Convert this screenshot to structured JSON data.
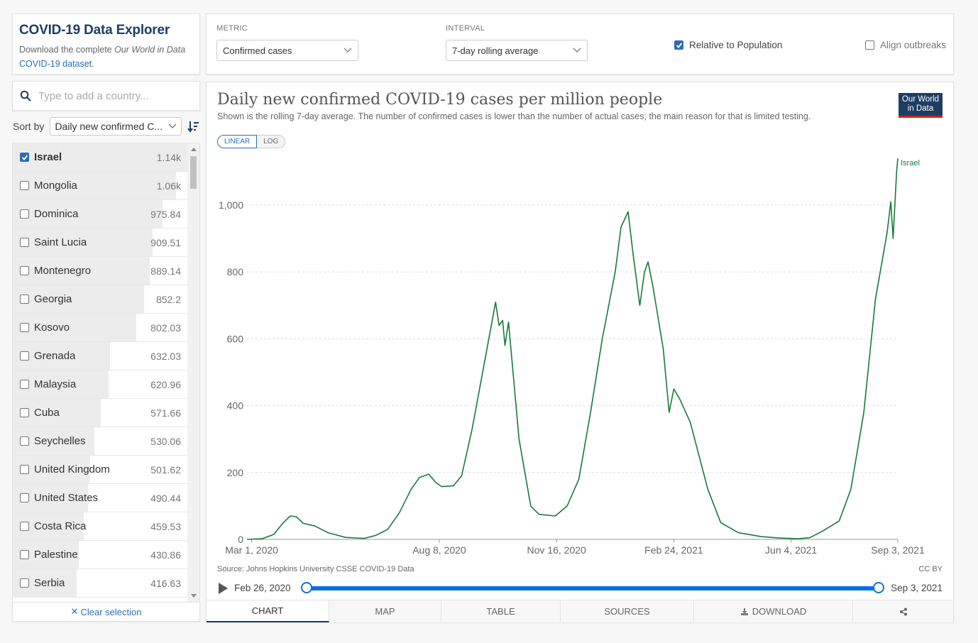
{
  "header": {
    "title": "COVID-19 Data Explorer",
    "download_prefix": "Download the complete ",
    "download_em": "Our World in Data",
    "download_link": "COVID-19 dataset",
    "download_suffix": "."
  },
  "search": {
    "placeholder": "Type to add a country..."
  },
  "sort": {
    "label": "Sort by",
    "value": "Daily new confirmed C..."
  },
  "countries": [
    {
      "name": "Israel",
      "value": "1.14k",
      "checked": true,
      "fraction": 1.0
    },
    {
      "name": "Mongolia",
      "value": "1.06k",
      "checked": false,
      "fraction": 0.93
    },
    {
      "name": "Dominica",
      "value": "975.84",
      "checked": false,
      "fraction": 0.856
    },
    {
      "name": "Saint Lucia",
      "value": "909.51",
      "checked": false,
      "fraction": 0.798
    },
    {
      "name": "Montenegro",
      "value": "889.14",
      "checked": false,
      "fraction": 0.78
    },
    {
      "name": "Georgia",
      "value": "852.2",
      "checked": false,
      "fraction": 0.748
    },
    {
      "name": "Kosovo",
      "value": "802.03",
      "checked": false,
      "fraction": 0.704
    },
    {
      "name": "Grenada",
      "value": "632.03",
      "checked": false,
      "fraction": 0.554
    },
    {
      "name": "Malaysia",
      "value": "620.96",
      "checked": false,
      "fraction": 0.545
    },
    {
      "name": "Cuba",
      "value": "571.66",
      "checked": false,
      "fraction": 0.501
    },
    {
      "name": "Seychelles",
      "value": "530.06",
      "checked": false,
      "fraction": 0.465
    },
    {
      "name": "United Kingdom",
      "value": "501.62",
      "checked": false,
      "fraction": 0.44
    },
    {
      "name": "United States",
      "value": "490.44",
      "checked": false,
      "fraction": 0.43
    },
    {
      "name": "Costa Rica",
      "value": "459.53",
      "checked": false,
      "fraction": 0.403
    },
    {
      "name": "Palestine",
      "value": "430.86",
      "checked": false,
      "fraction": 0.378
    },
    {
      "name": "Serbia",
      "value": "416.63",
      "checked": false,
      "fraction": 0.365
    }
  ],
  "clear_selection": "Clear selection",
  "controls": {
    "metric_label": "METRIC",
    "metric_value": "Confirmed cases",
    "interval_label": "INTERVAL",
    "interval_value": "7-day rolling average",
    "relative_label": "Relative to Population",
    "relative_checked": true,
    "align_label": "Align outbreaks",
    "align_checked": false
  },
  "chart": {
    "title": "Daily new confirmed COVID-19 cases per million people",
    "subtitle": "Shown is the rolling 7-day average. The number of confirmed cases is lower than the number of actual cases; the main reason for that is limited testing.",
    "logo_line1": "Our World",
    "logo_line2": "in Data",
    "scale_linear": "LINEAR",
    "scale_log": "LOG",
    "source": "Source: Johns Hopkins University CSSE COVID-19 Data",
    "license": "CC BY",
    "timeline_start": "Feb 26, 2020",
    "timeline_end": "Sep 3, 2021"
  },
  "tabs": [
    "CHART",
    "MAP",
    "TABLE",
    "SOURCES",
    "DOWNLOAD",
    ""
  ],
  "colors": {
    "accent": "#2c6db7",
    "series": "#187a3a",
    "brand": "#1d3d63"
  },
  "chart_data": {
    "type": "line",
    "title": "Daily new confirmed COVID-19 cases per million people",
    "ylim": [
      0,
      1140
    ],
    "y_ticks": [
      0,
      200,
      400,
      600,
      800,
      1000
    ],
    "x_ticks": [
      "Mar 1, 2020",
      "Aug 8, 2020",
      "Nov 16, 2020",
      "Feb 24, 2021",
      "Jun 4, 2021",
      "Sep 3, 2021"
    ],
    "x_range": [
      "2020-02-26",
      "2021-09-03"
    ],
    "series": [
      {
        "name": "Israel",
        "points": [
          [
            "2020-02-26",
            0
          ],
          [
            "2020-03-10",
            2
          ],
          [
            "2020-03-20",
            15
          ],
          [
            "2020-03-28",
            50
          ],
          [
            "2020-04-03",
            70
          ],
          [
            "2020-04-08",
            68
          ],
          [
            "2020-04-14",
            48
          ],
          [
            "2020-04-24",
            40
          ],
          [
            "2020-05-05",
            20
          ],
          [
            "2020-05-20",
            6
          ],
          [
            "2020-06-05",
            3
          ],
          [
            "2020-06-15",
            12
          ],
          [
            "2020-06-25",
            30
          ],
          [
            "2020-07-05",
            80
          ],
          [
            "2020-07-15",
            150
          ],
          [
            "2020-07-22",
            185
          ],
          [
            "2020-07-30",
            195
          ],
          [
            "2020-08-05",
            170
          ],
          [
            "2020-08-10",
            158
          ],
          [
            "2020-08-20",
            160
          ],
          [
            "2020-08-27",
            190
          ],
          [
            "2020-09-05",
            330
          ],
          [
            "2020-09-15",
            520
          ],
          [
            "2020-09-25",
            710
          ],
          [
            "2020-09-28",
            640
          ],
          [
            "2020-10-01",
            655
          ],
          [
            "2020-10-03",
            580
          ],
          [
            "2020-10-06",
            650
          ],
          [
            "2020-10-15",
            300
          ],
          [
            "2020-10-25",
            100
          ],
          [
            "2020-11-01",
            75
          ],
          [
            "2020-11-15",
            70
          ],
          [
            "2020-11-25",
            100
          ],
          [
            "2020-12-05",
            180
          ],
          [
            "2020-12-15",
            380
          ],
          [
            "2020-12-25",
            600
          ],
          [
            "2021-01-05",
            800
          ],
          [
            "2021-01-10",
            935
          ],
          [
            "2021-01-16",
            980
          ],
          [
            "2021-01-20",
            860
          ],
          [
            "2021-01-26",
            700
          ],
          [
            "2021-01-30",
            800
          ],
          [
            "2021-02-02",
            830
          ],
          [
            "2021-02-06",
            760
          ],
          [
            "2021-02-15",
            570
          ],
          [
            "2021-02-20",
            380
          ],
          [
            "2021-02-24",
            450
          ],
          [
            "2021-03-01",
            420
          ],
          [
            "2021-03-10",
            350
          ],
          [
            "2021-03-25",
            150
          ],
          [
            "2021-04-05",
            50
          ],
          [
            "2021-04-20",
            20
          ],
          [
            "2021-05-10",
            8
          ],
          [
            "2021-05-25",
            4
          ],
          [
            "2021-06-10",
            2
          ],
          [
            "2021-06-20",
            5
          ],
          [
            "2021-07-01",
            25
          ],
          [
            "2021-07-15",
            55
          ],
          [
            "2021-07-25",
            150
          ],
          [
            "2021-08-05",
            380
          ],
          [
            "2021-08-15",
            720
          ],
          [
            "2021-08-20",
            820
          ],
          [
            "2021-08-25",
            920
          ],
          [
            "2021-08-28",
            1010
          ],
          [
            "2021-08-30",
            900
          ],
          [
            "2021-09-02",
            1100
          ],
          [
            "2021-09-03",
            1140
          ]
        ]
      }
    ]
  }
}
